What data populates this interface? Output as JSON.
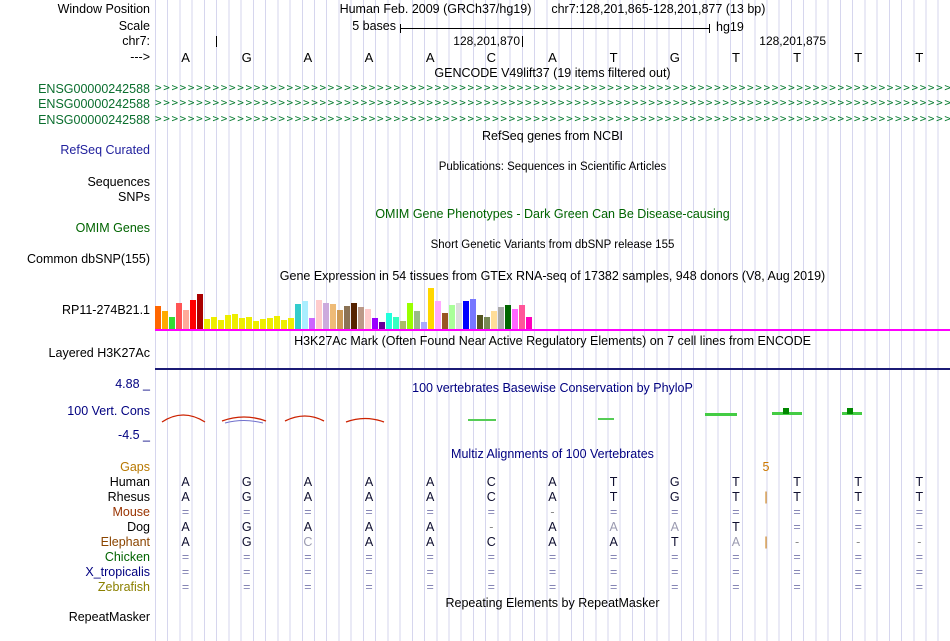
{
  "header": {
    "assembly_line": "Human Feb. 2009 (GRCh37/hg19)",
    "position_line": "chr7:128,201,865-128,201,877 (13 bp)"
  },
  "labels": {
    "window_position": "Window Position",
    "scale": "Scale",
    "chrom": "chr7:",
    "strand": "--->",
    "refseq": "RefSeq Curated",
    "sequences": "Sequences",
    "snps": "SNPs",
    "omim": "OMIM Genes",
    "dbsnp": "Common dbSNP(155)",
    "gtex_gene": "RP11-274B21.1",
    "h3k27ac": "Layered H3K27Ac",
    "phylop": "100 Vert. Cons",
    "phylop_max": "4.88 _",
    "phylop_min": "-4.5 _",
    "repeatmasker": "RepeatMasker"
  },
  "scale": {
    "value": "5 bases",
    "assembly": "hg19"
  },
  "ruler": {
    "bases": [
      "A",
      "G",
      "A",
      "A",
      "A",
      "C",
      "A",
      "T",
      "G",
      "T",
      "T",
      "T",
      "T"
    ],
    "tick_labels": [
      "128,201,870",
      "128,201,875"
    ]
  },
  "titles": {
    "gencode": "GENCODE V49lift37 (19 items filtered out)",
    "refseq": "RefSeq genes from NCBI",
    "publications": "Publications: Sequences in Scientific Articles",
    "omim": "OMIM Gene Phenotypes - Dark Green Can Be Disease-causing",
    "dbsnp": "Short Genetic Variants from dbSNP release 155",
    "gtex": "Gene Expression in 54 tissues from GTEx RNA-seq of 17382 samples, 948 donors (V8, Aug 2019)",
    "h3k27ac": "H3K27Ac Mark (Often Found Near Active Regulatory Elements) on 7 cell lines from ENCODE",
    "phylop": "100 vertebrates Basewise Conservation by PhyloP",
    "multiz": "Multiz Alignments of 100 Vertebrates",
    "repeat": "Repeating Elements by RepeatMasker"
  },
  "gencode": {
    "transcripts": [
      "ENSG00000242588",
      "ENSG00000242588",
      "ENSG00000242588"
    ]
  },
  "gtex_bars": [
    {
      "c": "#FF6600",
      "h": 24
    },
    {
      "c": "#FFAA00",
      "h": 19
    },
    {
      "c": "#33DD33",
      "h": 13
    },
    {
      "c": "#FF5555",
      "h": 27
    },
    {
      "c": "#FFAA99",
      "h": 20
    },
    {
      "c": "#FF0000",
      "h": 30
    },
    {
      "c": "#AA0000",
      "h": 36
    },
    {
      "c": "#EEEE00",
      "h": 11
    },
    {
      "c": "#EEEE00",
      "h": 13
    },
    {
      "c": "#EEEE00",
      "h": 10
    },
    {
      "c": "#EEEE00",
      "h": 15
    },
    {
      "c": "#EEEE00",
      "h": 16
    },
    {
      "c": "#EEEE00",
      "h": 12
    },
    {
      "c": "#EEEE00",
      "h": 13
    },
    {
      "c": "#EEEE00",
      "h": 9
    },
    {
      "c": "#EEEE00",
      "h": 11
    },
    {
      "c": "#EEEE00",
      "h": 12
    },
    {
      "c": "#EEEE00",
      "h": 14
    },
    {
      "c": "#EEEE00",
      "h": 10
    },
    {
      "c": "#EEEE00",
      "h": 12
    },
    {
      "c": "#33CCCC",
      "h": 26
    },
    {
      "c": "#AAEEFF",
      "h": 29
    },
    {
      "c": "#CC66FF",
      "h": 12
    },
    {
      "c": "#FFCCCC",
      "h": 30
    },
    {
      "c": "#CCAADD",
      "h": 27
    },
    {
      "c": "#EEBB77",
      "h": 26
    },
    {
      "c": "#CC9955",
      "h": 20
    },
    {
      "c": "#8B7355",
      "h": 24
    },
    {
      "c": "#552200",
      "h": 27
    },
    {
      "c": "#BB9988",
      "h": 23
    },
    {
      "c": "#FFCCCC",
      "h": 21
    },
    {
      "c": "#9900FF",
      "h": 12
    },
    {
      "c": "#660099",
      "h": 8
    },
    {
      "c": "#22FFDD",
      "h": 17
    },
    {
      "c": "#33FFC2",
      "h": 13
    },
    {
      "c": "#AABB66",
      "h": 9
    },
    {
      "c": "#99FF00",
      "h": 27
    },
    {
      "c": "#99BB88",
      "h": 19
    },
    {
      "c": "#AAAAFF",
      "h": 8
    },
    {
      "c": "#FFD700",
      "h": 42
    },
    {
      "c": "#FFAAFF",
      "h": 29
    },
    {
      "c": "#995522",
      "h": 17
    },
    {
      "c": "#AAFF99",
      "h": 25
    },
    {
      "c": "#DDDDDD",
      "h": 27
    },
    {
      "c": "#0000FF",
      "h": 29
    },
    {
      "c": "#7777FF",
      "h": 31
    },
    {
      "c": "#555522",
      "h": 15
    },
    {
      "c": "#778855",
      "h": 13
    },
    {
      "c": "#FFDD99",
      "h": 19
    },
    {
      "c": "#AAAAAA",
      "h": 23
    },
    {
      "c": "#006600",
      "h": 25
    },
    {
      "c": "#FF66FF",
      "h": 21
    },
    {
      "c": "#FF5599",
      "h": 25
    },
    {
      "c": "#FF00BB",
      "h": 13
    }
  ],
  "alignment": {
    "gap_size_label": "5",
    "rows": [
      {
        "label": "Gaps",
        "color": "#B87800",
        "cells": [
          "",
          "",
          "",
          "",
          "",
          "",
          "",
          "",
          "",
          "",
          "5",
          "",
          "",
          ""
        ],
        "muted": []
      },
      {
        "label": "Human",
        "color": "#000000",
        "cells": [
          "A",
          "G",
          "A",
          "A",
          "A",
          "C",
          "A",
          "T",
          "G",
          "T",
          "",
          "T",
          "T",
          "T"
        ],
        "muted": []
      },
      {
        "label": "Rhesus",
        "color": "#000000",
        "cells": [
          "A",
          "G",
          "A",
          "A",
          "A",
          "C",
          "A",
          "T",
          "G",
          "T",
          "|",
          "T",
          "T",
          "T"
        ],
        "muted": []
      },
      {
        "label": "Mouse",
        "color": "#993300",
        "cells": [
          "=",
          "=",
          "=",
          "=",
          "=",
          "=",
          "-",
          "=",
          "=",
          "=",
          "",
          "=",
          "=",
          "="
        ],
        "muted": []
      },
      {
        "label": "Dog",
        "color": "#000000",
        "cells": [
          "A",
          "G",
          "A",
          "A",
          "A",
          "-",
          "A",
          "A",
          "A",
          "T",
          "",
          "=",
          "=",
          "="
        ],
        "muted": [
          7,
          8
        ]
      },
      {
        "label": "Elephant",
        "color": "#8B4500",
        "cells": [
          "A",
          "G",
          "C",
          "A",
          "A",
          "C",
          "A",
          "A",
          "T",
          "A",
          "|",
          "-",
          "-",
          "-"
        ],
        "muted": [
          2,
          9
        ]
      },
      {
        "label": "Chicken",
        "color": "#006400",
        "cells": [
          "=",
          "=",
          "=",
          "=",
          "=",
          "=",
          "=",
          "=",
          "=",
          "=",
          "",
          "=",
          "=",
          "="
        ],
        "muted": []
      },
      {
        "label": "X_tropicalis",
        "color": "#000080",
        "cells": [
          "=",
          "=",
          "=",
          "=",
          "=",
          "=",
          "=",
          "=",
          "=",
          "=",
          "",
          "=",
          "=",
          "="
        ],
        "muted": []
      },
      {
        "label": "Zebrafish",
        "color": "#8B8000",
        "cells": [
          "=",
          "=",
          "=",
          "=",
          "=",
          "=",
          "=",
          "=",
          "=",
          "=",
          "",
          "=",
          "=",
          "="
        ],
        "muted": []
      }
    ]
  },
  "colors": {
    "grid_line": "#D6D6EE",
    "gtex_baseline": "#FF00FF",
    "h3k27ac_baseline": "#1B1B75",
    "gencode_green": "#0A7D32",
    "omim_green": "#006400",
    "conservation_navy": "#000080",
    "gaps_orange": "#B87800",
    "wiggle_red": "#CC2200",
    "wiggle_green": "#44CC44"
  }
}
